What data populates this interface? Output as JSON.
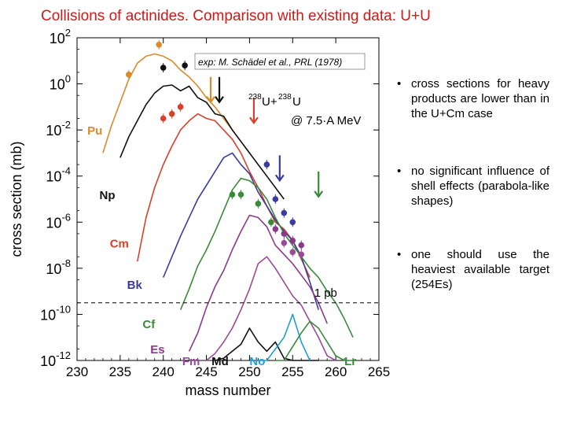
{
  "slide": {
    "title": "Collisions of actinides. Comparison with existing data: U+U",
    "bullets": [
      "cross sections for heavy products are lower than in the U+Cm case",
      "no significant influence of shell effects (parabola-like shapes)",
      "one should use the heaviest available target (254Es)"
    ],
    "bullet_marker": "•"
  },
  "chart_data": {
    "type": "line",
    "title": "",
    "xlabel": "mass number",
    "ylabel": "cross section (mb)",
    "xlim": [
      230,
      265
    ],
    "ylim_log10": [
      -12,
      2
    ],
    "x_ticks": [
      230,
      235,
      240,
      245,
      250,
      255,
      260,
      265
    ],
    "y_ticks_exp": [
      -12,
      -10,
      -8,
      -6,
      -4,
      -2,
      0,
      2
    ],
    "y_tick_base": "10",
    "reference_note": "exp: M. Schädel et al., PRL (1978)",
    "reaction_label": {
      "mass1": "238",
      "sym1": "U+",
      "mass2": "238",
      "sym2": "U",
      "energy": "@ 7.5·A MeV"
    },
    "threshold": {
      "log10_y": -9.5,
      "label": "1 pb"
    },
    "series": [
      {
        "name": "Pu",
        "color": "#d98a2b",
        "x": [
          233,
          234,
          235,
          236,
          237,
          238,
          239,
          240,
          241,
          242,
          243,
          244,
          245,
          246,
          247,
          248,
          249,
          250
        ],
        "log10_y": [
          -3,
          -1.8,
          -0.8,
          0.2,
          0.9,
          1.2,
          1.3,
          1.2,
          1.0,
          0.6,
          0.3,
          -0.1,
          -0.6,
          -1.0,
          -1.5,
          -2.0,
          -2.5,
          -3.0
        ],
        "points_x": [
          236,
          239.5
        ],
        "points_log10_y": [
          0.4,
          1.7
        ]
      },
      {
        "name": "Np",
        "color": "#111111",
        "x": [
          235,
          236,
          237,
          238,
          239,
          240,
          241,
          242,
          243,
          244,
          245,
          246,
          247,
          248,
          249,
          250,
          251,
          252,
          253,
          254
        ],
        "log10_y": [
          -3.2,
          -2.3,
          -1.6,
          -0.9,
          -0.4,
          -0.1,
          -0.05,
          -0.3,
          -0.1,
          -0.6,
          -0.8,
          -1.3,
          -1.4,
          -2.0,
          -2.5,
          -3.0,
          -3.5,
          -4.0,
          -4.5,
          -5.0
        ],
        "points_x": [
          240,
          242.5
        ],
        "points_log10_y": [
          0.7,
          0.8
        ]
      },
      {
        "name": "Cm",
        "color": "#d8402a",
        "x": [
          237,
          238,
          239,
          240,
          241,
          242,
          243,
          244,
          245,
          246,
          247,
          248,
          249,
          250,
          251,
          252,
          253,
          254,
          255,
          256,
          257
        ],
        "log10_y": [
          -7.7,
          -5.8,
          -4.5,
          -3.5,
          -2.7,
          -2.0,
          -1.6,
          -1.3,
          -1.5,
          -1.6,
          -2.0,
          -2.4,
          -3.0,
          -3.8,
          -4.5,
          -5.3,
          -6.0,
          -6.3,
          -6.8,
          -7.6,
          -8.4
        ],
        "points_x": [
          240,
          241,
          242
        ],
        "points_log10_y": [
          -1.5,
          -1.3,
          -1.0
        ]
      },
      {
        "name": "Bk",
        "color": "#3a3aa0",
        "x": [
          240,
          241,
          242,
          243,
          244,
          245,
          246,
          247,
          248,
          249,
          250,
          251,
          252,
          253,
          254,
          255,
          256,
          257,
          258
        ],
        "log10_y": [
          -8.4,
          -7.5,
          -6.6,
          -5.8,
          -5.0,
          -4.4,
          -3.8,
          -3.2,
          -3.0,
          -3.5,
          -3.9,
          -4.7,
          -5.3,
          -5.9,
          -6.4,
          -6.8,
          -7.5,
          -8.6,
          -9.8
        ],
        "points_x": [
          252,
          253,
          254,
          255
        ],
        "points_log10_y": [
          -3.5,
          -5.0,
          -5.6,
          -6.0
        ]
      },
      {
        "name": "Cf",
        "color": "#3a8a3a",
        "x": [
          242,
          243,
          244,
          245,
          246,
          247,
          248,
          249,
          250,
          251,
          252,
          253,
          254,
          255,
          256,
          257,
          258,
          259,
          260,
          261,
          262
        ],
        "log10_y": [
          -9.8,
          -8.9,
          -7.9,
          -7.2,
          -6.4,
          -5.5,
          -4.6,
          -4.1,
          -4.2,
          -4.5,
          -5.0,
          -5.8,
          -6.5,
          -7.0,
          -7.5,
          -8.0,
          -8.4,
          -9.0,
          -9.5,
          -10.2,
          -11.0
        ],
        "points_x": [
          248,
          249,
          251,
          252.5
        ],
        "points_log10_y": [
          -4.8,
          -4.8,
          -5.2,
          -6.0
        ]
      },
      {
        "name": "Es",
        "color": "#8a3a8a",
        "x": [
          243,
          244,
          245,
          246,
          247,
          248,
          249,
          250,
          251,
          252,
          253,
          254,
          255,
          256,
          257,
          258,
          259
        ],
        "log10_y": [
          -11.6,
          -10.8,
          -9.7,
          -8.8,
          -8.1,
          -7.2,
          -6.4,
          -5.7,
          -5.8,
          -6.2,
          -7.0,
          -7.4,
          -7.8,
          -8.3,
          -8.8,
          -9.5,
          -10.4
        ],
        "points_x": [
          253,
          254,
          255,
          256
        ],
        "points_log10_y": [
          -6.3,
          -6.5,
          -6.8,
          -7.0
        ]
      },
      {
        "name": "Fm",
        "color": "#9a4a9a",
        "x": [
          245,
          246,
          247,
          248,
          249,
          250,
          251,
          252,
          253,
          254,
          255,
          256,
          257,
          258,
          259,
          260
        ],
        "log10_y": [
          -12.5,
          -11.7,
          -11.2,
          -10.6,
          -9.8,
          -8.9,
          -7.8,
          -7.5,
          -8.0,
          -8.6,
          -9.2,
          -9.6,
          -10.3,
          -11.0,
          -11.8,
          -12.6
        ],
        "points_x": [
          254,
          255,
          256
        ],
        "points_log10_y": [
          -6.9,
          -7.3,
          -7.4
        ]
      },
      {
        "name": "Md",
        "color": "#111111",
        "x": [
          246,
          247,
          248,
          249,
          250,
          251,
          252,
          253,
          254,
          255,
          256,
          257,
          258
        ],
        "log10_y": [
          -12.4,
          -11.9,
          -11.6,
          -11.3,
          -10.6,
          -11.2,
          -11.6,
          -11.2,
          -11.9,
          -12.3,
          -12.0,
          -12.5,
          -12.9
        ],
        "points_x": [],
        "points_log10_y": []
      },
      {
        "name": "No",
        "color": "#1fa0d0",
        "x": [
          251,
          252,
          253,
          254,
          255,
          256,
          257
        ],
        "log10_y": [
          -12.7,
          -12.2,
          -11.5,
          -11.0,
          -10.0,
          -11.2,
          -12.4
        ],
        "points_x": [],
        "points_log10_y": []
      },
      {
        "name": "Lr",
        "color": "#3a8a3a",
        "x": [
          253,
          254,
          255,
          256,
          257,
          258,
          259,
          260,
          261,
          262
        ],
        "log10_y": [
          -12.6,
          -12.0,
          -11.4,
          -10.8,
          -10.3,
          -10.6,
          -11.2,
          -11.8,
          -12.3,
          -12.8
        ],
        "points_x": [],
        "points_log10_y": []
      }
    ],
    "arrows": [
      {
        "color": "#d98a2b",
        "x": 245.5
      },
      {
        "color": "#111111",
        "x": 246.5
      },
      {
        "color": "#d8402a",
        "x": 250.5
      },
      {
        "color": "#3a3aa0",
        "x": 253.5
      },
      {
        "color": "#3a8a3a",
        "x": 258
      }
    ]
  }
}
